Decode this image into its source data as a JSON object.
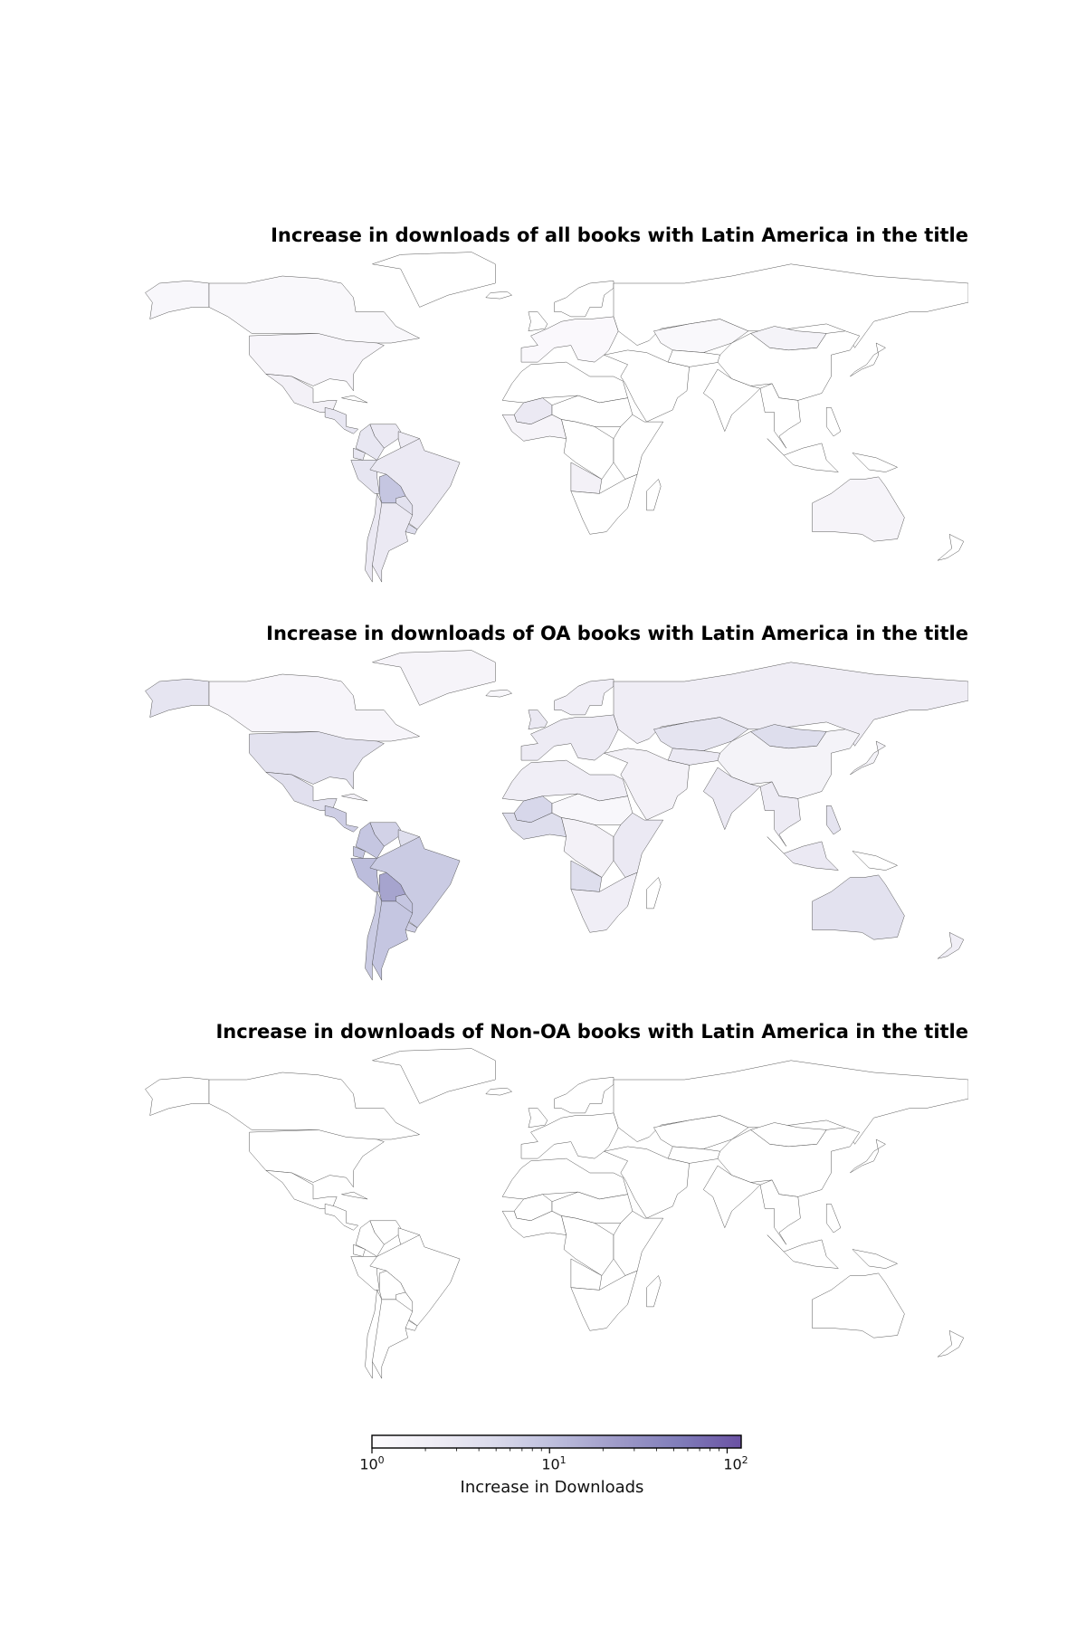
{
  "maps": [
    {
      "id": "all",
      "title": "Increase in downloads of all books with Latin America in the title",
      "levels": {
        "canada": 0.04,
        "alaska": 0.05,
        "greenland": 0.0,
        "usa": 0.07,
        "mexico": 0.12,
        "central_america": 0.22,
        "cuba": 0.0,
        "venezuela": 0.2,
        "colombia": 0.22,
        "guyanas": 0.18,
        "ecuador": 0.22,
        "peru": 0.24,
        "brazil": 0.2,
        "bolivia": 0.45,
        "paraguay": 0.26,
        "chile": 0.2,
        "argentina": 0.2,
        "uruguay": 0.3,
        "europe": 0.03,
        "scandinavia": 0.0,
        "iceland": 0.0,
        "uk": 0.0,
        "russia": 0.0,
        "kazakhstan": 0.04,
        "mongolia": 0.1,
        "china": 0.0,
        "india": 0.0,
        "middle_east": 0.0,
        "central_asia": 0.0,
        "north_africa": 0.0,
        "west_africa": 0.08,
        "mali": 0.2,
        "sahel": 0.0,
        "central_africa": 0.0,
        "angola": 0.12,
        "east_africa": 0.0,
        "southern_africa": 0.0,
        "madagascar": 0.0,
        "southeast_asia": 0.0,
        "indonesia": 0.0,
        "philippines": 0.0,
        "japan": 0.0,
        "australia": 0.08,
        "new_zealand": 0.0,
        "papua": 0.0
      }
    },
    {
      "id": "oa",
      "title": "Increase in downloads of OA books with Latin America in the title",
      "levels": {
        "canada": 0.07,
        "alaska": 0.24,
        "greenland": 0.08,
        "usa": 0.26,
        "mexico": 0.28,
        "central_america": 0.4,
        "cuba": 0.12,
        "venezuela": 0.38,
        "colombia": 0.45,
        "guyanas": 0.3,
        "ecuador": 0.45,
        "peru": 0.5,
        "brazil": 0.42,
        "bolivia": 0.62,
        "paraguay": 0.45,
        "chile": 0.42,
        "argentina": 0.45,
        "uruguay": 0.4,
        "europe": 0.18,
        "scandinavia": 0.15,
        "iceland": 0.05,
        "uk": 0.2,
        "russia": 0.17,
        "kazakhstan": 0.25,
        "mongolia": 0.3,
        "china": 0.1,
        "india": 0.2,
        "middle_east": 0.12,
        "central_asia": 0.2,
        "north_africa": 0.15,
        "west_africa": 0.3,
        "mali": 0.35,
        "sahel": 0.05,
        "central_africa": 0.12,
        "angola": 0.3,
        "east_africa": 0.2,
        "southern_africa": 0.15,
        "madagascar": 0.0,
        "southeast_asia": 0.18,
        "indonesia": 0.2,
        "philippines": 0.25,
        "japan": 0.1,
        "australia": 0.26,
        "new_zealand": 0.15,
        "papua": 0.0
      }
    },
    {
      "id": "non-oa",
      "title": "Increase in downloads of Non-OA books with Latin America in the title",
      "levels": {}
    }
  ],
  "colorbar": {
    "label": "Increase in Downloads",
    "ticks": [
      {
        "base": "10",
        "exp": "0"
      },
      {
        "base": "10",
        "exp": "1"
      },
      {
        "base": "10",
        "exp": "2"
      }
    ],
    "range": [
      1,
      120
    ],
    "scale": "log",
    "colors": [
      "#fcfbfd",
      "#efedf5",
      "#dadaeb",
      "#bcbddc",
      "#9e9ac8",
      "#807dba",
      "#6a51a3"
    ]
  }
}
